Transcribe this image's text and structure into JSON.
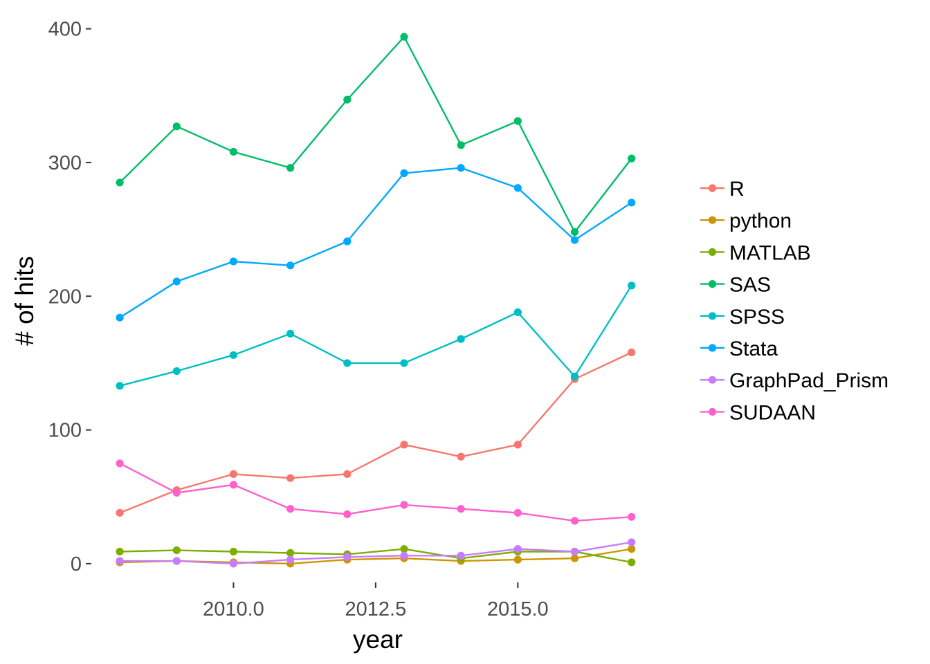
{
  "chart_data": {
    "type": "line",
    "title": "",
    "xlabel": "year",
    "ylabel": "# of hits",
    "x": [
      2008,
      2009,
      2010,
      2011,
      2012,
      2013,
      2014,
      2015,
      2016,
      2017
    ],
    "xlim": [
      2007.5,
      2017.6
    ],
    "ylim": [
      -14,
      406
    ],
    "x_ticks": [
      2010.0,
      2012.5,
      2015.0
    ],
    "x_tick_labels": [
      "2010.0",
      "2012.5",
      "2015.0"
    ],
    "y_ticks": [
      0,
      100,
      200,
      300,
      400
    ],
    "y_tick_labels": [
      "0",
      "100",
      "200",
      "300",
      "400"
    ],
    "grid": false,
    "legend_position": "right",
    "series": [
      {
        "name": "R",
        "color": "#F8766D",
        "values": [
          38,
          55,
          67,
          64,
          67,
          89,
          80,
          89,
          138,
          158
        ]
      },
      {
        "name": "python",
        "color": "#CD9600",
        "values": [
          1,
          2,
          1,
          0,
          3,
          4,
          2,
          3,
          4,
          11
        ]
      },
      {
        "name": "MATLAB",
        "color": "#7CAE00",
        "values": [
          9,
          10,
          9,
          8,
          7,
          11,
          4,
          9,
          9,
          1
        ]
      },
      {
        "name": "SAS",
        "color": "#00BE67",
        "values": [
          285,
          327,
          308,
          296,
          347,
          394,
          313,
          331,
          248,
          303
        ]
      },
      {
        "name": "SPSS",
        "color": "#00BFC4",
        "values": [
          133,
          144,
          156,
          172,
          150,
          150,
          168,
          188,
          140,
          208
        ]
      },
      {
        "name": "Stata",
        "color": "#00A9FF",
        "values": [
          184,
          211,
          226,
          223,
          241,
          292,
          296,
          281,
          242,
          270
        ]
      },
      {
        "name": "GraphPad_Prism",
        "color": "#C77CFF",
        "values": [
          2,
          2,
          0,
          3,
          5,
          6,
          6,
          11,
          9,
          16
        ]
      },
      {
        "name": "SUDAAN",
        "color": "#FF61CC",
        "values": [
          75,
          53,
          59,
          41,
          37,
          44,
          41,
          38,
          32,
          35
        ]
      }
    ]
  }
}
